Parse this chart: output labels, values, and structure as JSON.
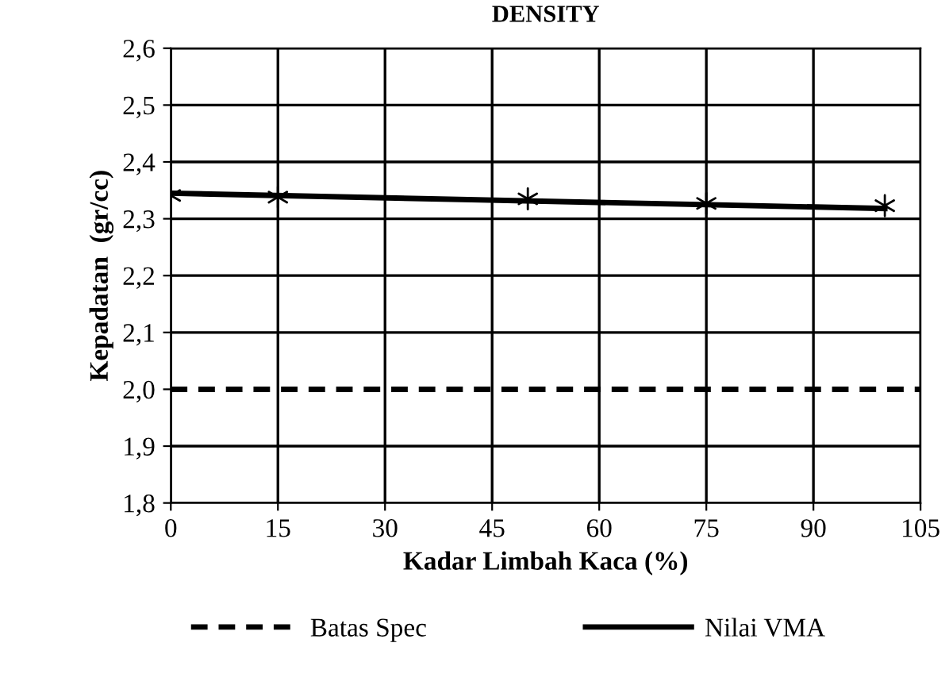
{
  "chart_data": {
    "type": "line",
    "title": "DENSITY",
    "xlabel": "Kadar Limbah Kaca (%)",
    "ylabel": "Kepadatan  (gr/cc)",
    "series": [
      {
        "name": "Batas Spec",
        "color": "#000000",
        "line_style": "dashed",
        "x": [
          0,
          105
        ],
        "values": [
          2.0,
          2.0
        ]
      },
      {
        "name": "Nilai VMA",
        "color": "#000000",
        "line_style": "solid",
        "x": [
          0,
          100
        ],
        "values": [
          2.345,
          2.318
        ]
      },
      {
        "type": "scatter",
        "color": "#000000",
        "marker": "cross",
        "x": [
          0,
          15,
          50,
          75,
          100
        ],
        "values": [
          2.341,
          2.338,
          2.335,
          2.327,
          2.323
        ]
      }
    ],
    "xlim": [
      0,
      105
    ],
    "xticks": [
      0,
      15,
      30,
      45,
      60,
      75,
      90,
      105
    ],
    "ylim": [
      1.8,
      2.6
    ],
    "yticks": [
      {
        "value": 1.8,
        "label": "1,8"
      },
      {
        "value": 1.9,
        "label": "1,9"
      },
      {
        "value": 2.0,
        "label": "2,0"
      },
      {
        "value": 2.1,
        "label": "2,1"
      },
      {
        "value": 2.2,
        "label": "2,2"
      },
      {
        "value": 2.3,
        "label": "2,3"
      },
      {
        "value": 2.4,
        "label": "2,4"
      },
      {
        "value": 2.5,
        "label": "2,5"
      },
      {
        "value": 2.6,
        "label": "2,6"
      }
    ],
    "grid": true,
    "legend": "bottom"
  }
}
